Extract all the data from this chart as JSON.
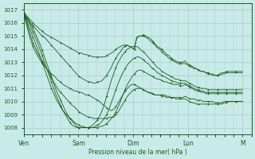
{
  "background_color": "#c8eae8",
  "grid_color": "#a8ccc8",
  "line_color": "#1a5c1a",
  "xlabel": "Pression niveau de la mer( hPa )",
  "ylim": [
    1007.5,
    1017.5
  ],
  "yticks": [
    1008,
    1009,
    1010,
    1011,
    1012,
    1013,
    1014,
    1015,
    1016,
    1017
  ],
  "xtick_labels": [
    "Ven",
    "Sam",
    "Dim",
    "Lun",
    "M"
  ],
  "xtick_positions": [
    0,
    24,
    48,
    72,
    96
  ],
  "xlim": [
    0,
    100
  ],
  "series": [
    [
      1016.8,
      1016.5,
      1016.3,
      1016.0,
      1015.8,
      1015.6,
      1015.4,
      1015.2,
      1015.0,
      1014.9,
      1014.7,
      1014.5,
      1014.3,
      1014.1,
      1013.9,
      1013.7,
      1013.5,
      1013.3,
      1013.1,
      1012.9,
      1012.7,
      1012.5,
      1012.3,
      1012.1,
      1011.9,
      1011.8,
      1011.7,
      1011.6,
      1011.5,
      1011.5,
      1011.4,
      1011.4,
      1011.5,
      1011.5,
      1011.6,
      1011.8,
      1012.0,
      1012.3,
      1012.6,
      1013.0,
      1013.3,
      1013.6,
      1013.8,
      1014.1,
      1014.2,
      1014.3,
      1014.2,
      1014.1,
      1014.0,
      1014.9,
      1015.0,
      1015.0,
      1015.1,
      1015.0,
      1014.9,
      1014.8,
      1014.6,
      1014.4,
      1014.2,
      1014.1,
      1014.0,
      1013.8,
      1013.6,
      1013.5,
      1013.3,
      1013.2,
      1013.1,
      1013.0,
      1013.0,
      1013.0,
      1013.1,
      1012.9,
      1012.8,
      1012.7,
      1012.6,
      1012.5,
      1012.4,
      1012.3,
      1012.3,
      1012.2,
      1012.1,
      1012.1,
      1012.0,
      1012.0,
      1012.0,
      1012.1,
      1012.2,
      1012.2,
      1012.3,
      1012.3,
      1012.3,
      1012.3,
      1012.3,
      1012.3,
      1012.3,
      1012.3
    ],
    [
      1016.8,
      1016.6,
      1016.4,
      1016.2,
      1016.0,
      1015.8,
      1015.7,
      1015.5,
      1015.4,
      1015.2,
      1015.1,
      1015.0,
      1014.9,
      1014.8,
      1014.7,
      1014.6,
      1014.5,
      1014.4,
      1014.3,
      1014.2,
      1014.1,
      1014.0,
      1013.9,
      1013.8,
      1013.7,
      1013.7,
      1013.6,
      1013.6,
      1013.5,
      1013.5,
      1013.4,
      1013.4,
      1013.4,
      1013.4,
      1013.4,
      1013.4,
      1013.5,
      1013.6,
      1013.7,
      1013.8,
      1014.0,
      1014.1,
      1014.2,
      1014.3,
      1014.3,
      1014.3,
      1014.2,
      1014.1,
      1014.0,
      1014.8,
      1015.0,
      1015.0,
      1015.0,
      1014.9,
      1014.8,
      1014.6,
      1014.5,
      1014.3,
      1014.1,
      1014.0,
      1013.8,
      1013.6,
      1013.5,
      1013.3,
      1013.2,
      1013.1,
      1013.0,
      1012.9,
      1012.9,
      1012.9,
      1012.9,
      1012.8,
      1012.7,
      1012.6,
      1012.5,
      1012.5,
      1012.4,
      1012.3,
      1012.3,
      1012.2,
      1012.2,
      1012.1,
      1012.1,
      1012.0,
      1012.0,
      1012.0,
      1012.1,
      1012.1,
      1012.2,
      1012.2,
      1012.2,
      1012.2,
      1012.2,
      1012.2,
      1012.2,
      1012.2
    ],
    [
      1016.8,
      1016.0,
      1015.3,
      1014.7,
      1014.2,
      1013.8,
      1013.5,
      1013.2,
      1012.9,
      1012.7,
      1012.5,
      1012.3,
      1012.1,
      1012.0,
      1011.8,
      1011.6,
      1011.5,
      1011.3,
      1011.2,
      1011.1,
      1011.0,
      1010.9,
      1010.8,
      1010.8,
      1010.7,
      1010.7,
      1010.6,
      1010.5,
      1010.5,
      1010.4,
      1010.3,
      1010.2,
      1010.1,
      1010.0,
      1009.8,
      1009.7,
      1009.5,
      1009.4,
      1009.3,
      1009.4,
      1009.6,
      1009.9,
      1010.2,
      1010.5,
      1010.8,
      1011.0,
      1011.2,
      1011.3,
      1011.3,
      1011.2,
      1011.1,
      1011.0,
      1010.9,
      1010.8,
      1010.7,
      1010.6,
      1010.6,
      1010.5,
      1010.5,
      1010.5,
      1010.5,
      1010.5,
      1010.4,
      1010.4,
      1010.3,
      1010.3,
      1010.3,
      1010.3,
      1010.3,
      1010.3,
      1010.4,
      1010.3,
      1010.2,
      1010.2,
      1010.2,
      1010.1,
      1010.1,
      1010.1,
      1010.0,
      1010.0,
      1010.0,
      1010.0,
      1010.0,
      1009.9,
      1009.9,
      1009.9,
      1009.9,
      1010.0,
      1010.0,
      1010.0,
      1010.0,
      1010.0,
      1010.0,
      1010.0,
      1010.0,
      1010.0
    ],
    [
      1016.8,
      1016.2,
      1015.6,
      1015.0,
      1014.5,
      1014.1,
      1013.7,
      1013.4,
      1013.1,
      1012.8,
      1012.5,
      1012.2,
      1011.8,
      1011.5,
      1011.2,
      1010.9,
      1010.7,
      1010.5,
      1010.3,
      1010.1,
      1009.9,
      1009.7,
      1009.6,
      1009.4,
      1009.2,
      1009.1,
      1009.0,
      1008.9,
      1008.8,
      1008.8,
      1008.7,
      1008.7,
      1008.7,
      1008.7,
      1008.7,
      1008.7,
      1008.7,
      1008.8,
      1008.8,
      1008.8,
      1009.0,
      1009.2,
      1009.5,
      1009.8,
      1010.1,
      1010.4,
      1010.6,
      1010.8,
      1010.9,
      1011.0,
      1011.0,
      1011.0,
      1010.9,
      1010.8,
      1010.7,
      1010.7,
      1010.6,
      1010.5,
      1010.5,
      1010.5,
      1010.4,
      1010.4,
      1010.3,
      1010.3,
      1010.3,
      1010.3,
      1010.2,
      1010.2,
      1010.2,
      1010.2,
      1010.2,
      1010.1,
      1010.0,
      1009.9,
      1009.9,
      1009.8,
      1009.8,
      1009.8,
      1009.8,
      1009.8,
      1009.8,
      1009.8,
      1009.8,
      1009.8,
      1009.8,
      1009.8,
      1009.8,
      1009.9,
      1009.9,
      1010.0,
      1010.0,
      1010.0,
      1010.0,
      1010.0,
      1010.0,
      1010.0
    ],
    [
      1016.7,
      1016.3,
      1015.8,
      1015.4,
      1014.9,
      1014.5,
      1014.0,
      1013.5,
      1013.0,
      1012.5,
      1012.0,
      1011.5,
      1011.0,
      1010.6,
      1010.2,
      1009.9,
      1009.6,
      1009.3,
      1009.1,
      1008.9,
      1008.7,
      1008.6,
      1008.4,
      1008.3,
      1008.2,
      1008.1,
      1008.1,
      1008.0,
      1008.0,
      1008.0,
      1008.0,
      1008.0,
      1008.0,
      1008.1,
      1008.1,
      1008.2,
      1008.3,
      1008.5,
      1008.7,
      1008.9,
      1009.2,
      1009.6,
      1010.0,
      1010.5,
      1010.9,
      1011.3,
      1011.6,
      1011.9,
      1012.1,
      1012.3,
      1012.4,
      1012.4,
      1012.3,
      1012.2,
      1012.1,
      1012.0,
      1011.9,
      1011.8,
      1011.7,
      1011.7,
      1011.6,
      1011.5,
      1011.5,
      1011.4,
      1011.4,
      1011.3,
      1011.3,
      1011.3,
      1011.2,
      1011.2,
      1011.3,
      1011.2,
      1011.1,
      1011.0,
      1010.9,
      1010.8,
      1010.8,
      1010.7,
      1010.7,
      1010.6,
      1010.6,
      1010.6,
      1010.6,
      1010.6,
      1010.6,
      1010.6,
      1010.6,
      1010.6,
      1010.6,
      1010.6,
      1010.6,
      1010.6,
      1010.6,
      1010.6,
      1010.6,
      1010.6
    ],
    [
      1016.7,
      1016.4,
      1016.1,
      1015.7,
      1015.3,
      1014.9,
      1014.5,
      1014.0,
      1013.5,
      1013.0,
      1012.5,
      1012.0,
      1011.5,
      1011.0,
      1010.5,
      1010.1,
      1009.7,
      1009.3,
      1009.0,
      1008.7,
      1008.4,
      1008.2,
      1008.1,
      1008.0,
      1008.0,
      1008.0,
      1008.0,
      1008.0,
      1008.0,
      1008.0,
      1008.0,
      1008.1,
      1008.2,
      1008.3,
      1008.5,
      1008.7,
      1009.0,
      1009.4,
      1009.9,
      1010.4,
      1010.9,
      1011.4,
      1011.8,
      1012.2,
      1012.5,
      1012.8,
      1013.0,
      1013.2,
      1013.3,
      1013.4,
      1013.4,
      1013.3,
      1013.2,
      1013.0,
      1012.9,
      1012.7,
      1012.5,
      1012.4,
      1012.2,
      1012.1,
      1012.0,
      1011.9,
      1011.8,
      1011.7,
      1011.6,
      1011.5,
      1011.5,
      1011.4,
      1011.4,
      1011.4,
      1011.4,
      1011.3,
      1011.2,
      1011.1,
      1011.0,
      1010.9,
      1010.9,
      1010.8,
      1010.8,
      1010.7,
      1010.7,
      1010.7,
      1010.7,
      1010.7,
      1010.7,
      1010.7,
      1010.7,
      1010.7,
      1010.7,
      1010.7,
      1010.7,
      1010.7,
      1010.7,
      1010.7,
      1010.7,
      1010.7
    ],
    [
      1016.7,
      1016.5,
      1016.2,
      1015.9,
      1015.6,
      1015.2,
      1014.8,
      1014.4,
      1013.9,
      1013.4,
      1012.9,
      1012.4,
      1011.9,
      1011.4,
      1010.9,
      1010.5,
      1010.1,
      1009.7,
      1009.3,
      1009.0,
      1008.7,
      1008.5,
      1008.3,
      1008.1,
      1008.0,
      1008.0,
      1008.0,
      1008.0,
      1008.0,
      1008.1,
      1008.2,
      1008.4,
      1008.6,
      1008.9,
      1009.3,
      1009.8,
      1010.4,
      1011.0,
      1011.6,
      1012.1,
      1012.6,
      1013.0,
      1013.3,
      1013.6,
      1013.8,
      1014.0,
      1014.1,
      1014.2,
      1014.2,
      1014.2,
      1014.1,
      1013.9,
      1013.8,
      1013.6,
      1013.4,
      1013.2,
      1013.0,
      1012.8,
      1012.6,
      1012.5,
      1012.3,
      1012.2,
      1012.1,
      1012.0,
      1011.9,
      1011.8,
      1011.7,
      1011.7,
      1011.6,
      1011.6,
      1011.6,
      1011.5,
      1011.4,
      1011.3,
      1011.2,
      1011.1,
      1011.1,
      1011.0,
      1011.0,
      1011.0,
      1010.9,
      1010.9,
      1010.9,
      1010.9,
      1010.9,
      1010.9,
      1010.9,
      1010.9,
      1010.9,
      1010.9,
      1010.9,
      1010.9,
      1010.9,
      1010.9,
      1010.9,
      1010.9
    ]
  ]
}
